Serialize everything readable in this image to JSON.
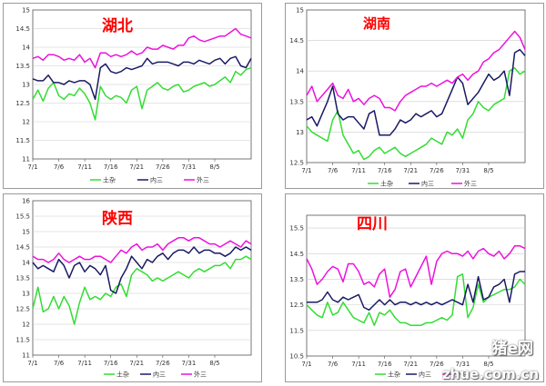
{
  "colors": {
    "tujiao": "#33dd33",
    "neisan": "#1a1a66",
    "waisan": "#ee11dd",
    "title": "#ff0000",
    "grid": "#cccccc"
  },
  "watermark": {
    "line1": "猪e网",
    "line2": "zhue.com.cn"
  },
  "chart_data": [
    {
      "type": "line",
      "title": "湖北",
      "ylim": [
        11,
        15
      ],
      "yticks": [
        "11",
        "11.5",
        "12",
        "12.5",
        "13",
        "13.5",
        "14",
        "14.5",
        "15"
      ],
      "xticks": [
        "7/1",
        "7/6",
        "7/11",
        "7/16",
        "7/21",
        "7/26",
        "7/31",
        "8/5"
      ],
      "x_count": 43,
      "legend": [
        "土杂",
        "内三",
        "外三"
      ],
      "series": [
        {
          "name": "土杂",
          "values": [
            12.6,
            12.85,
            12.55,
            12.9,
            13.05,
            12.7,
            12.6,
            12.75,
            12.7,
            12.9,
            12.75,
            12.5,
            12.05,
            12.95,
            12.7,
            12.6,
            12.7,
            12.65,
            12.5,
            12.85,
            12.95,
            12.35,
            12.85,
            12.95,
            13.05,
            12.9,
            12.85,
            12.95,
            13.0,
            12.8,
            12.85,
            12.95,
            13.0,
            13.05,
            12.95,
            13.0,
            13.1,
            13.2,
            13.05,
            13.35,
            13.25,
            13.4,
            13.45
          ]
        },
        {
          "name": "内三",
          "values": [
            13.15,
            13.1,
            13.1,
            13.25,
            13.05,
            13.05,
            13.0,
            13.1,
            13.05,
            13.1,
            13.1,
            13.0,
            12.6,
            13.45,
            13.55,
            13.35,
            13.3,
            13.35,
            13.45,
            13.4,
            13.45,
            13.5,
            13.7,
            13.55,
            13.6,
            13.6,
            13.6,
            13.55,
            13.5,
            13.6,
            13.6,
            13.55,
            13.65,
            13.6,
            13.55,
            13.65,
            13.7,
            13.55,
            13.7,
            13.75,
            13.5,
            13.45,
            13.7
          ]
        },
        {
          "name": "外三",
          "values": [
            13.7,
            13.75,
            13.65,
            13.8,
            13.8,
            13.75,
            13.65,
            13.7,
            13.65,
            13.8,
            13.6,
            13.7,
            13.45,
            13.85,
            13.85,
            13.75,
            13.8,
            13.75,
            13.8,
            13.9,
            13.8,
            13.85,
            14.0,
            13.95,
            13.95,
            14.05,
            14.0,
            13.95,
            14.05,
            14.05,
            14.25,
            14.3,
            14.2,
            14.15,
            14.2,
            14.25,
            14.3,
            14.3,
            14.4,
            14.5,
            14.35,
            14.3,
            14.25
          ]
        }
      ]
    },
    {
      "type": "line",
      "title": "湖南",
      "ylim": [
        12.5,
        15
      ],
      "yticks": [
        "12.5",
        "13",
        "13.5",
        "14",
        "14.5",
        "15"
      ],
      "xticks": [
        "7/1",
        "7/6",
        "7/11",
        "7/16",
        "7/21",
        "7/26",
        "7/31",
        "8/5"
      ],
      "x_count": 43,
      "legend": [
        "土杂",
        "内三",
        "外三"
      ],
      "series": [
        {
          "name": "土杂",
          "values": [
            13.1,
            13.0,
            12.95,
            12.9,
            12.85,
            13.2,
            13.35,
            12.95,
            12.8,
            12.65,
            12.7,
            12.55,
            12.6,
            12.7,
            12.75,
            12.65,
            12.7,
            12.75,
            12.65,
            12.6,
            12.65,
            12.7,
            12.75,
            12.8,
            12.9,
            12.85,
            12.8,
            13.0,
            12.95,
            13.05,
            12.9,
            13.2,
            13.3,
            13.5,
            13.4,
            13.35,
            13.45,
            13.5,
            13.55,
            14.0,
            14.05,
            13.95,
            14.0
          ]
        },
        {
          "name": "内三",
          "values": [
            13.2,
            13.25,
            13.1,
            13.3,
            13.5,
            13.75,
            13.3,
            13.2,
            13.25,
            13.25,
            13.15,
            13.05,
            13.3,
            13.35,
            12.95,
            12.95,
            12.95,
            13.05,
            13.2,
            13.15,
            13.2,
            13.3,
            13.25,
            13.3,
            13.35,
            13.25,
            13.3,
            13.5,
            13.7,
            13.9,
            13.8,
            13.45,
            13.55,
            13.65,
            13.8,
            13.95,
            13.85,
            13.9,
            14.0,
            13.6,
            14.3,
            14.35,
            14.25
          ]
        },
        {
          "name": "外三",
          "values": [
            13.6,
            13.75,
            13.5,
            13.6,
            13.7,
            13.8,
            13.6,
            13.55,
            13.7,
            13.5,
            13.55,
            13.45,
            13.55,
            13.6,
            13.55,
            13.4,
            13.4,
            13.35,
            13.5,
            13.6,
            13.65,
            13.7,
            13.75,
            13.75,
            13.8,
            13.75,
            13.8,
            13.85,
            13.8,
            13.9,
            13.95,
            13.85,
            13.95,
            14.0,
            14.15,
            14.2,
            14.3,
            14.35,
            14.45,
            14.55,
            14.65,
            14.55,
            14.35
          ]
        }
      ]
    },
    {
      "type": "line",
      "title": "陕西",
      "ylim": [
        11,
        16
      ],
      "yticks": [
        "11",
        "11.5",
        "12",
        "12.5",
        "13",
        "13.5",
        "14",
        "14.5",
        "15",
        "15.5",
        "16"
      ],
      "xticks": [
        "7/1",
        "7/6",
        "7/11",
        "7/16",
        "7/21",
        "7/26",
        "7/31",
        "8/5"
      ],
      "x_count": 43,
      "legend": [
        "土杂",
        "内三",
        "外三"
      ],
      "series": [
        {
          "name": "土杂",
          "values": [
            12.5,
            13.2,
            12.4,
            12.5,
            12.9,
            12.5,
            12.9,
            12.6,
            12.0,
            12.7,
            13.2,
            12.8,
            12.9,
            12.8,
            13.0,
            12.9,
            13.2,
            13.3,
            12.9,
            13.6,
            13.8,
            13.7,
            13.6,
            13.4,
            13.5,
            13.4,
            13.5,
            13.6,
            13.7,
            13.6,
            13.5,
            13.7,
            13.8,
            13.7,
            13.8,
            13.9,
            13.9,
            14.0,
            13.8,
            14.1,
            14.1,
            14.2,
            14.1
          ]
        },
        {
          "name": "内三",
          "values": [
            14.0,
            13.8,
            13.9,
            13.8,
            13.7,
            14.1,
            13.9,
            13.5,
            13.9,
            14.0,
            13.7,
            13.9,
            13.8,
            13.6,
            13.9,
            13.1,
            13.0,
            13.5,
            13.8,
            14.2,
            14.0,
            13.8,
            14.1,
            14.0,
            14.2,
            14.3,
            14.1,
            14.3,
            14.4,
            14.4,
            14.3,
            14.5,
            14.3,
            14.4,
            14.4,
            14.3,
            14.3,
            14.2,
            14.3,
            14.5,
            14.4,
            14.5,
            14.4
          ]
        },
        {
          "name": "外三",
          "values": [
            14.2,
            14.1,
            14.1,
            14.0,
            14.1,
            14.3,
            14.1,
            14.0,
            14.1,
            14.2,
            14.1,
            14.1,
            14.2,
            14.2,
            14.1,
            14.0,
            14.2,
            14.4,
            14.3,
            14.5,
            14.6,
            14.4,
            14.5,
            14.5,
            14.6,
            14.4,
            14.6,
            14.7,
            14.8,
            14.8,
            14.7,
            14.8,
            14.8,
            14.7,
            14.6,
            14.6,
            14.5,
            14.6,
            14.7,
            14.6,
            14.5,
            14.7,
            14.6
          ]
        }
      ]
    },
    {
      "type": "line",
      "title": "四川",
      "ylim": [
        10.5,
        16
      ],
      "yticks": [
        "10.5",
        "11.5",
        "12.5",
        "13.5",
        "14.5",
        "15.5"
      ],
      "xticks": [
        "7/1",
        "7/6",
        "7/11",
        "7/16",
        "7/21",
        "7/26",
        "7/31",
        "8/5"
      ],
      "x_count": 43,
      "legend": [
        "土杂",
        "内三",
        "外三"
      ],
      "series": [
        {
          "name": "土杂",
          "values": [
            12.5,
            12.3,
            12.1,
            12.0,
            12.6,
            12.1,
            12.2,
            12.6,
            12.3,
            12.0,
            11.9,
            11.8,
            12.2,
            11.7,
            12.2,
            12.1,
            12.3,
            12.0,
            11.8,
            11.8,
            11.7,
            11.7,
            11.7,
            11.8,
            11.8,
            11.9,
            12.0,
            11.9,
            12.1,
            13.6,
            13.7,
            12.0,
            12.4,
            13.3,
            12.6,
            12.8,
            12.9,
            13.0,
            13.1,
            13.1,
            13.2,
            13.5,
            13.3
          ]
        },
        {
          "name": "内三",
          "values": [
            12.6,
            12.6,
            12.6,
            12.7,
            13.0,
            12.7,
            12.6,
            12.8,
            12.7,
            12.8,
            12.9,
            12.4,
            12.3,
            12.5,
            12.7,
            12.5,
            12.7,
            12.5,
            12.6,
            12.6,
            12.5,
            12.6,
            12.5,
            12.6,
            12.5,
            12.6,
            12.5,
            12.6,
            12.7,
            12.6,
            12.5,
            13.3,
            12.6,
            13.6,
            12.7,
            12.8,
            13.2,
            13.3,
            13.5,
            12.6,
            13.7,
            13.8,
            13.8
          ]
        },
        {
          "name": "外三",
          "values": [
            14.3,
            13.9,
            13.3,
            13.5,
            13.8,
            14.0,
            13.9,
            13.4,
            14.1,
            14.1,
            13.8,
            13.3,
            13.4,
            13.2,
            13.7,
            13.9,
            12.8,
            13.1,
            13.8,
            13.9,
            13.2,
            13.6,
            14.0,
            14.4,
            13.3,
            14.2,
            14.5,
            14.6,
            14.5,
            14.5,
            14.4,
            14.6,
            14.3,
            14.6,
            14.7,
            14.5,
            14.4,
            14.6,
            14.3,
            14.5,
            14.8,
            14.8,
            14.7
          ]
        }
      ]
    }
  ]
}
